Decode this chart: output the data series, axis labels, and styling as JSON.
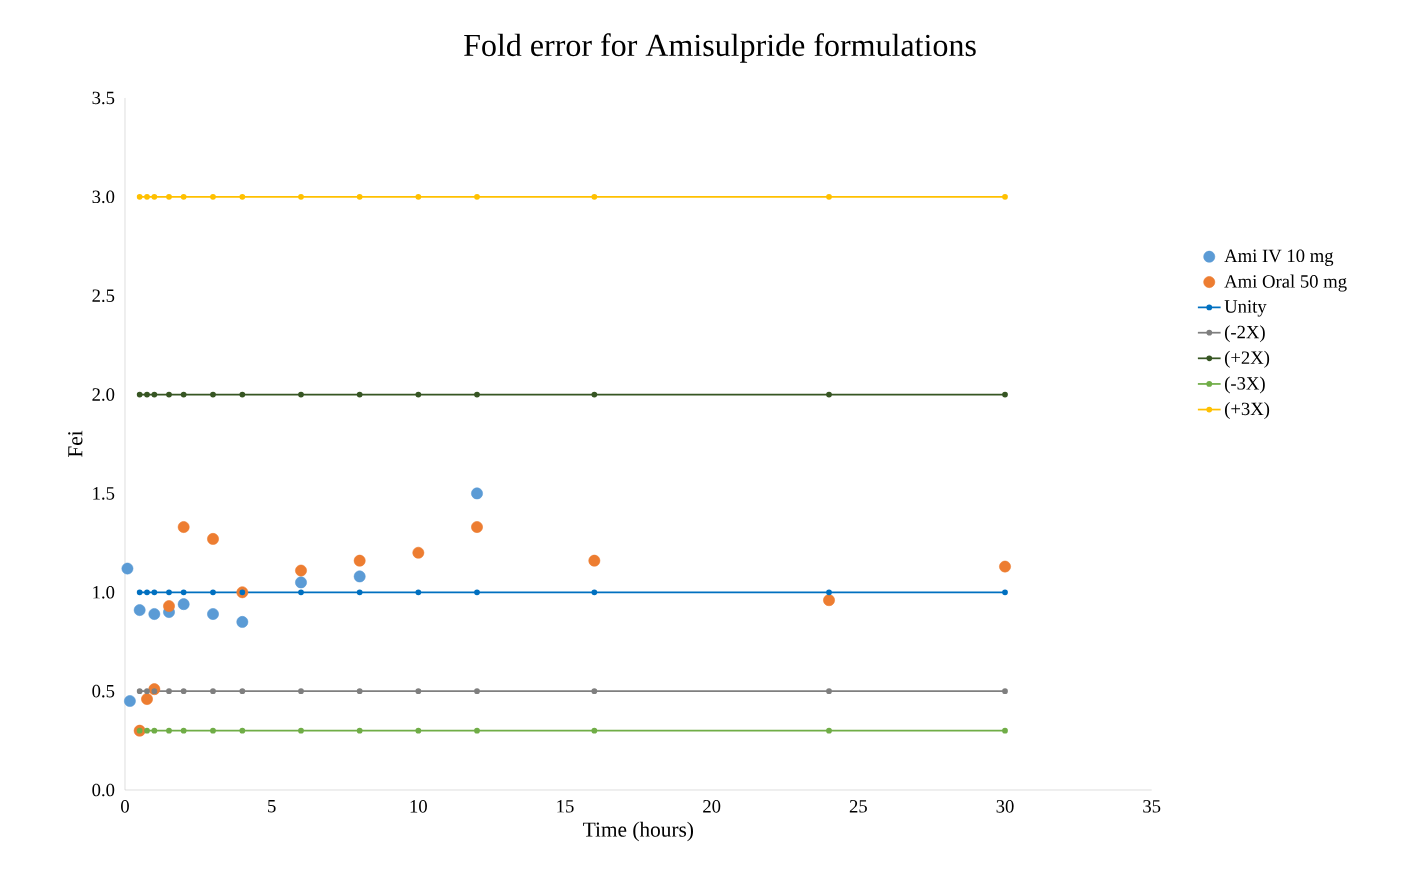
{
  "chart_data": {
    "type": "scatter",
    "title": "Fold error for Amisulpride formulations",
    "xlabel": "Time (hours)",
    "ylabel": "Fei",
    "xlim": [
      0,
      35
    ],
    "xticks": [
      0,
      5,
      10,
      15,
      20,
      25,
      30,
      35
    ],
    "ylim": [
      0,
      3.5
    ],
    "yticks": [
      {
        "value": 0,
        "label": "0.0"
      },
      {
        "value": 0.5,
        "label": "0.5"
      },
      {
        "value": 1,
        "label": "1.0"
      },
      {
        "value": 1.5,
        "label": "1.5"
      },
      {
        "value": 2,
        "label": "2.0"
      },
      {
        "value": 2.5,
        "label": "2.5"
      },
      {
        "value": 3,
        "label": "3.0"
      },
      {
        "value": 3.5,
        "label": "3.5"
      }
    ],
    "grid": false,
    "legend": "right",
    "marker": "circle",
    "series": [
      {
        "name": "Ami IV 10 mg",
        "color": "#5b9bd5",
        "x": [
          0.083,
          0.167,
          0.5,
          1,
          1.5,
          2,
          3,
          4,
          6,
          8,
          12
        ],
        "values": [
          1.12,
          0.45,
          0.91,
          0.89,
          0.9,
          0.94,
          0.89,
          0.85,
          1.05,
          1.08,
          1.5
        ]
      },
      {
        "name": "Ami Oral 50 mg",
        "color": "#ed7d31",
        "x": [
          0.5,
          0.75,
          1,
          1.5,
          2,
          3,
          4,
          6,
          8,
          10,
          12,
          16,
          24,
          30
        ],
        "values": [
          0.3,
          0.46,
          0.51,
          0.93,
          1.33,
          1.27,
          1.0,
          1.11,
          1.16,
          1.2,
          1.33,
          1.16,
          0.96,
          1.13
        ]
      },
      {
        "name": "Unity",
        "type": "line",
        "color": "#0070c0",
        "x": [
          0.5,
          0.75,
          1,
          1.5,
          2,
          3,
          4,
          6,
          8,
          10,
          12,
          16,
          24,
          30
        ],
        "values": [
          1,
          1,
          1,
          1,
          1,
          1,
          1,
          1,
          1,
          1,
          1,
          1,
          1,
          1
        ]
      },
      {
        "name": "(-2X)",
        "type": "line",
        "color": "#7f7f7f",
        "x": [
          0.5,
          0.75,
          1,
          1.5,
          2,
          3,
          4,
          6,
          8,
          10,
          12,
          16,
          24,
          30
        ],
        "values": [
          0.5,
          0.5,
          0.5,
          0.5,
          0.5,
          0.5,
          0.5,
          0.5,
          0.5,
          0.5,
          0.5,
          0.5,
          0.5,
          0.5
        ]
      },
      {
        "name": "(+2X)",
        "type": "line",
        "color": "#375623",
        "x": [
          0.5,
          0.75,
          1,
          1.5,
          2,
          3,
          4,
          6,
          8,
          10,
          12,
          16,
          24,
          30
        ],
        "values": [
          2,
          2,
          2,
          2,
          2,
          2,
          2,
          2,
          2,
          2,
          2,
          2,
          2,
          2
        ]
      },
      {
        "name": "(-3X)",
        "type": "line",
        "color": "#70ad47",
        "x": [
          0.5,
          0.75,
          1,
          1.5,
          2,
          3,
          4,
          6,
          8,
          10,
          12,
          16,
          24,
          30
        ],
        "values": [
          0.3,
          0.3,
          0.3,
          0.3,
          0.3,
          0.3,
          0.3,
          0.3,
          0.3,
          0.3,
          0.3,
          0.3,
          0.3,
          0.3
        ]
      },
      {
        "name": "(+3X)",
        "type": "line",
        "color": "#ffc000",
        "x": [
          0.5,
          0.75,
          1,
          1.5,
          2,
          3,
          4,
          6,
          8,
          10,
          12,
          16,
          24,
          30
        ],
        "values": [
          3,
          3,
          3,
          3,
          3,
          3,
          3,
          3,
          3,
          3,
          3,
          3,
          3,
          3
        ]
      }
    ]
  }
}
